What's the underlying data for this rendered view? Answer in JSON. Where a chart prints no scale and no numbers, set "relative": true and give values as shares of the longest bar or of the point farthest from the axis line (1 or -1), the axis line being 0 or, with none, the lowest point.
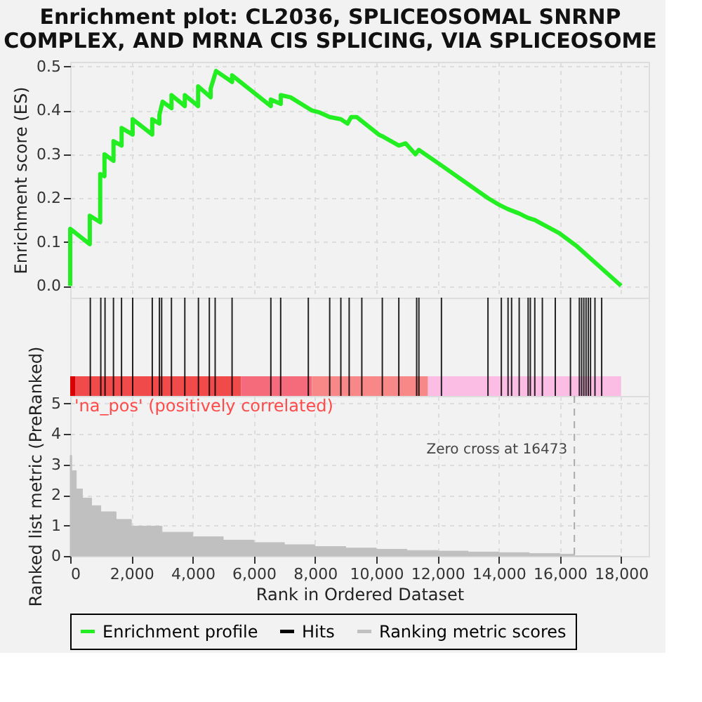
{
  "chart_data": [
    {
      "type": "line",
      "title": "Enrichment plot: CL2036, SPLICEOSOMAL SNRNP COMPLEX, AND MRNA CIS SPLICING, VIA SPLICEOSOME",
      "ylabel": "Enrichment score (ES)",
      "xlim": [
        0,
        18900
      ],
      "xticks": [
        {
          "value": 0,
          "label": null
        },
        {
          "value": 2000,
          "label": null
        },
        {
          "value": 4000,
          "label": null
        },
        {
          "value": 6000,
          "label": null
        },
        {
          "value": 8000,
          "label": null
        },
        {
          "value": 10000,
          "label": null
        },
        {
          "value": 12000,
          "label": null
        },
        {
          "value": 14000,
          "label": null
        },
        {
          "value": 16000,
          "label": null
        },
        {
          "value": 18000,
          "label": null
        }
      ],
      "ylim": [
        -0.027,
        0.511
      ],
      "yticks": [
        {
          "value": 0,
          "label": "0.0"
        },
        {
          "value": 0.1,
          "label": "0.1"
        },
        {
          "value": 0.2,
          "label": "0.2"
        },
        {
          "value": 0.3,
          "label": "0.3"
        },
        {
          "value": 0.4,
          "label": "0.4"
        },
        {
          "value": 0.5,
          "label": "0.5"
        }
      ],
      "grid": true,
      "tick_labels": "y",
      "marker": "none",
      "line_style": "solid",
      "series": [
        {
          "name": "Enrichment profile",
          "color": "#22ee22",
          "x": [
            0,
            0,
            640,
            640,
            980,
            980,
            1120,
            1120,
            1415,
            1415,
            1680,
            1680,
            2040,
            2040,
            2680,
            2680,
            2915,
            2915,
            3020,
            3310,
            3310,
            3745,
            3745,
            4180,
            4180,
            4590,
            4590,
            4765,
            5290,
            5290,
            6555,
            6555,
            6880,
            6880,
            7200,
            7780,
            7900,
            8160,
            8480,
            8840,
            9060,
            9180,
            9360,
            10080,
            10230,
            10740,
            10960,
            11280,
            11390,
            12120,
            13650,
            14010,
            14300,
            14670,
            14960,
            15180,
            15980,
            16560,
            18000
          ],
          "values": [
            0,
            0.13,
            0.095,
            0.16,
            0.145,
            0.255,
            0.25,
            0.3,
            0.285,
            0.33,
            0.32,
            0.36,
            0.345,
            0.38,
            0.345,
            0.38,
            0.37,
            0.39,
            0.42,
            0.405,
            0.435,
            0.41,
            0.435,
            0.41,
            0.455,
            0.43,
            0.45,
            0.49,
            0.465,
            0.48,
            0.41,
            0.425,
            0.415,
            0.435,
            0.43,
            0.405,
            0.4,
            0.395,
            0.385,
            0.38,
            0.37,
            0.385,
            0.385,
            0.345,
            0.34,
            0.32,
            0.325,
            0.3,
            0.31,
            0.275,
            0.2,
            0.185,
            0.175,
            0.165,
            0.155,
            0.15,
            0.12,
            0.09,
            0
          ]
        }
      ]
    },
    {
      "type": "bar",
      "relative": true,
      "tick_labels": false,
      "xlim": [
        0,
        18900
      ],
      "series": [
        {
          "name": "Hits",
          "color": "#000000",
          "x": [
            657,
            1000,
            1138,
            1414,
            1677,
            2041,
            2682,
            2915,
            2988,
            3308,
            3745,
            4190,
            4546,
            4736,
            5289,
            6556,
            6877,
            7780,
            8479,
            8843,
            9115,
            9528,
            10198,
            10737,
            11320,
            11393,
            12130,
            13650,
            14087,
            14306,
            14422,
            14670,
            14962,
            15034,
            15180,
            15427,
            15850,
            16345,
            16636,
            16709,
            16782,
            16855,
            16928,
            17000,
            17146,
            17365
          ],
          "values": [
            1,
            1,
            1,
            1,
            1,
            1,
            1,
            1,
            1,
            1,
            1,
            1,
            1,
            1,
            1,
            1,
            1,
            1,
            1,
            1,
            1,
            1,
            1,
            1,
            1,
            1,
            1,
            1,
            1,
            1,
            1,
            1,
            1,
            1,
            1,
            1,
            1,
            1,
            1,
            1,
            1,
            1,
            1,
            1,
            1,
            1
          ]
        }
      ],
      "bands": [
        {
          "axis": "x",
          "from": 0,
          "to": 175,
          "color": "#dd0000"
        },
        {
          "axis": "x",
          "from": 175,
          "to": 5580,
          "color": "#f04a4a"
        },
        {
          "axis": "x",
          "from": 5580,
          "to": 7900,
          "color": "#f56b7b"
        },
        {
          "axis": "x",
          "from": 7900,
          "to": 11690,
          "color": "#f88787"
        },
        {
          "axis": "x",
          "from": 11690,
          "to": 18000,
          "color": "#fbbde3"
        }
      ]
    },
    {
      "type": "area",
      "xlabel": "Rank in Ordered Dataset",
      "ylabel": "Ranked list metric (PreRanked)",
      "xlim": [
        0,
        18900
      ],
      "xticks": [
        {
          "value": 0,
          "label": "0"
        },
        {
          "value": 2000,
          "label": "2,000"
        },
        {
          "value": 4000,
          "label": "4,000"
        },
        {
          "value": 6000,
          "label": "6,000"
        },
        {
          "value": 8000,
          "label": "8,000"
        },
        {
          "value": 10000,
          "label": "10,000"
        },
        {
          "value": 12000,
          "label": "12,000"
        },
        {
          "value": 14000,
          "label": "14,000"
        },
        {
          "value": 16000,
          "label": "16,000"
        },
        {
          "value": 18000,
          "label": "18,000"
        }
      ],
      "ylim": [
        0,
        5.25
      ],
      "yticks": [
        0,
        1,
        2,
        3,
        4,
        5
      ],
      "grid": true,
      "legend": "bottom",
      "annotations": [
        "'na_pos' (positively correlated)"
      ],
      "ref_lines": [
        {
          "axis": "x",
          "value": 16473,
          "label": "Zero cross at 16473",
          "color": "#aaaaaa",
          "line_style": "dashed"
        }
      ],
      "series": [
        {
          "name": "Ranking metric scores",
          "color": "#c0c0c0",
          "x": [
            0,
            50,
            200,
            400,
            700,
            1000,
            1500,
            2000,
            3000,
            4000,
            5000,
            6000,
            7000,
            8000,
            9000,
            10000,
            11000,
            12000,
            13000,
            14000,
            15000,
            16000,
            16473,
            18000
          ],
          "values": [
            3.3,
            2.8,
            2.2,
            1.9,
            1.65,
            1.45,
            1.2,
            0.98,
            0.78,
            0.63,
            0.52,
            0.44,
            0.37,
            0.31,
            0.26,
            0.22,
            0.18,
            0.16,
            0.13,
            0.11,
            0.08,
            0.06,
            0,
            0
          ]
        }
      ]
    }
  ]
}
